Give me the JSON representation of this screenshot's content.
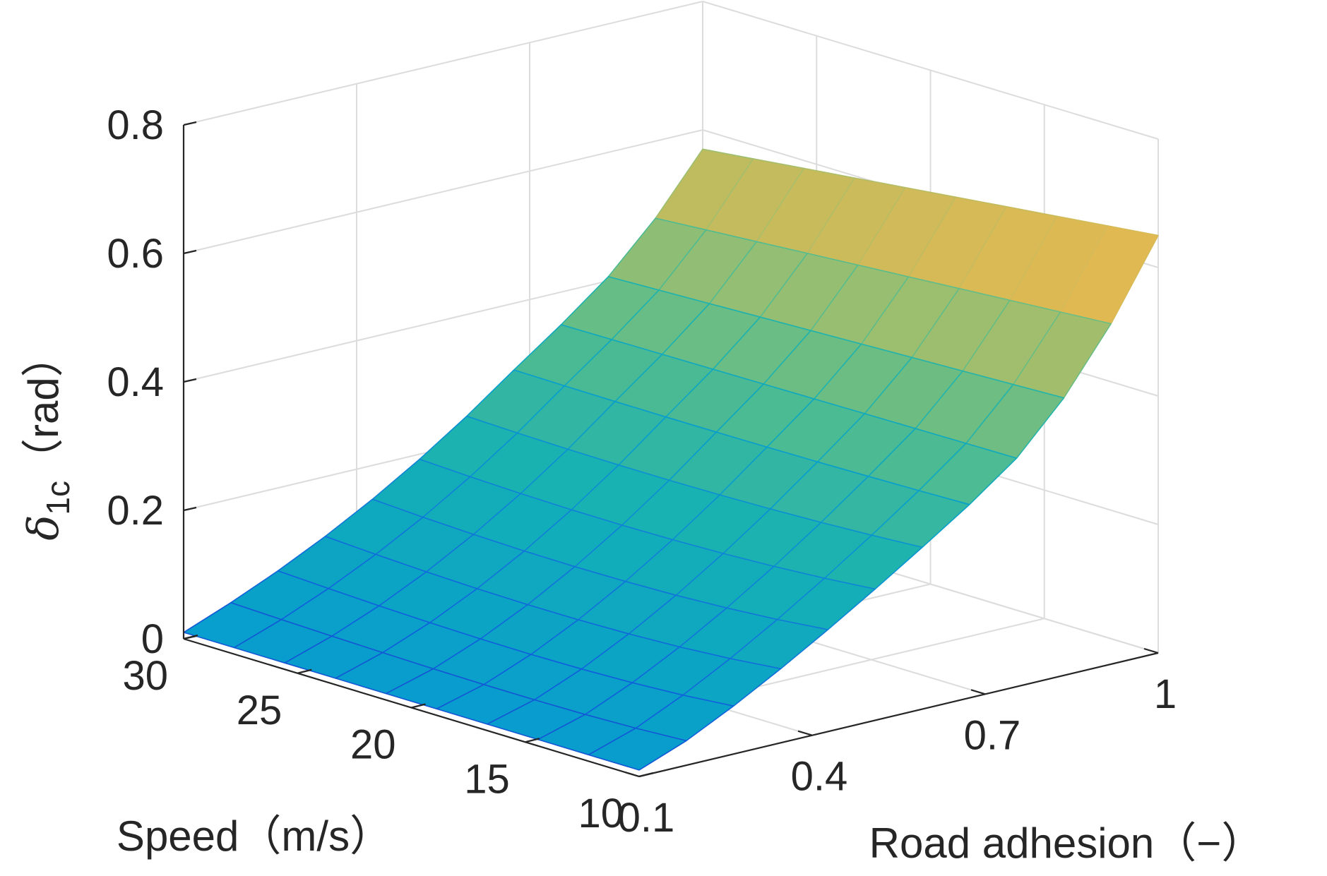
{
  "chart_data": {
    "type": "surface",
    "title": "",
    "xlabel": "Road adhesion（−）",
    "ylabel": "Speed（m/s）",
    "zlabel_symbol": "δ",
    "zlabel_subscript": "1c",
    "zlabel_unit": "（rad）",
    "x_ticks": [
      "0.1",
      "0.4",
      "0.7",
      "1"
    ],
    "y_ticks": [
      "10",
      "15",
      "20",
      "25",
      "30"
    ],
    "z_ticks": [
      "0",
      "0.2",
      "0.4",
      "0.6",
      "0.8"
    ],
    "xlim": [
      0.1,
      1.0
    ],
    "ylim": [
      10,
      30
    ],
    "zlim": [
      0,
      0.8
    ],
    "grid": true,
    "colormap": "parula",
    "surface_model": {
      "description_values": "z(mu, v) sampled on a mesh; z(0.1,*)=0.01, z(1,10)=0.65, z(1,30)=0.57",
      "mu": [
        0.1,
        0.1818,
        0.2636,
        0.3455,
        0.4273,
        0.5091,
        0.5909,
        0.6727,
        0.7545,
        0.8364,
        0.9182,
        1.0
      ],
      "speed": [
        10,
        12.22,
        14.44,
        16.67,
        18.89,
        21.11,
        23.33,
        25.56,
        27.78,
        30
      ],
      "z_at_mu_min": 0.01,
      "z_at_mu_max_speed_min": 0.65,
      "z_at_mu_max_speed_max": 0.57,
      "crossing_mu": 0.72,
      "crossing_z": 0.33
    }
  }
}
